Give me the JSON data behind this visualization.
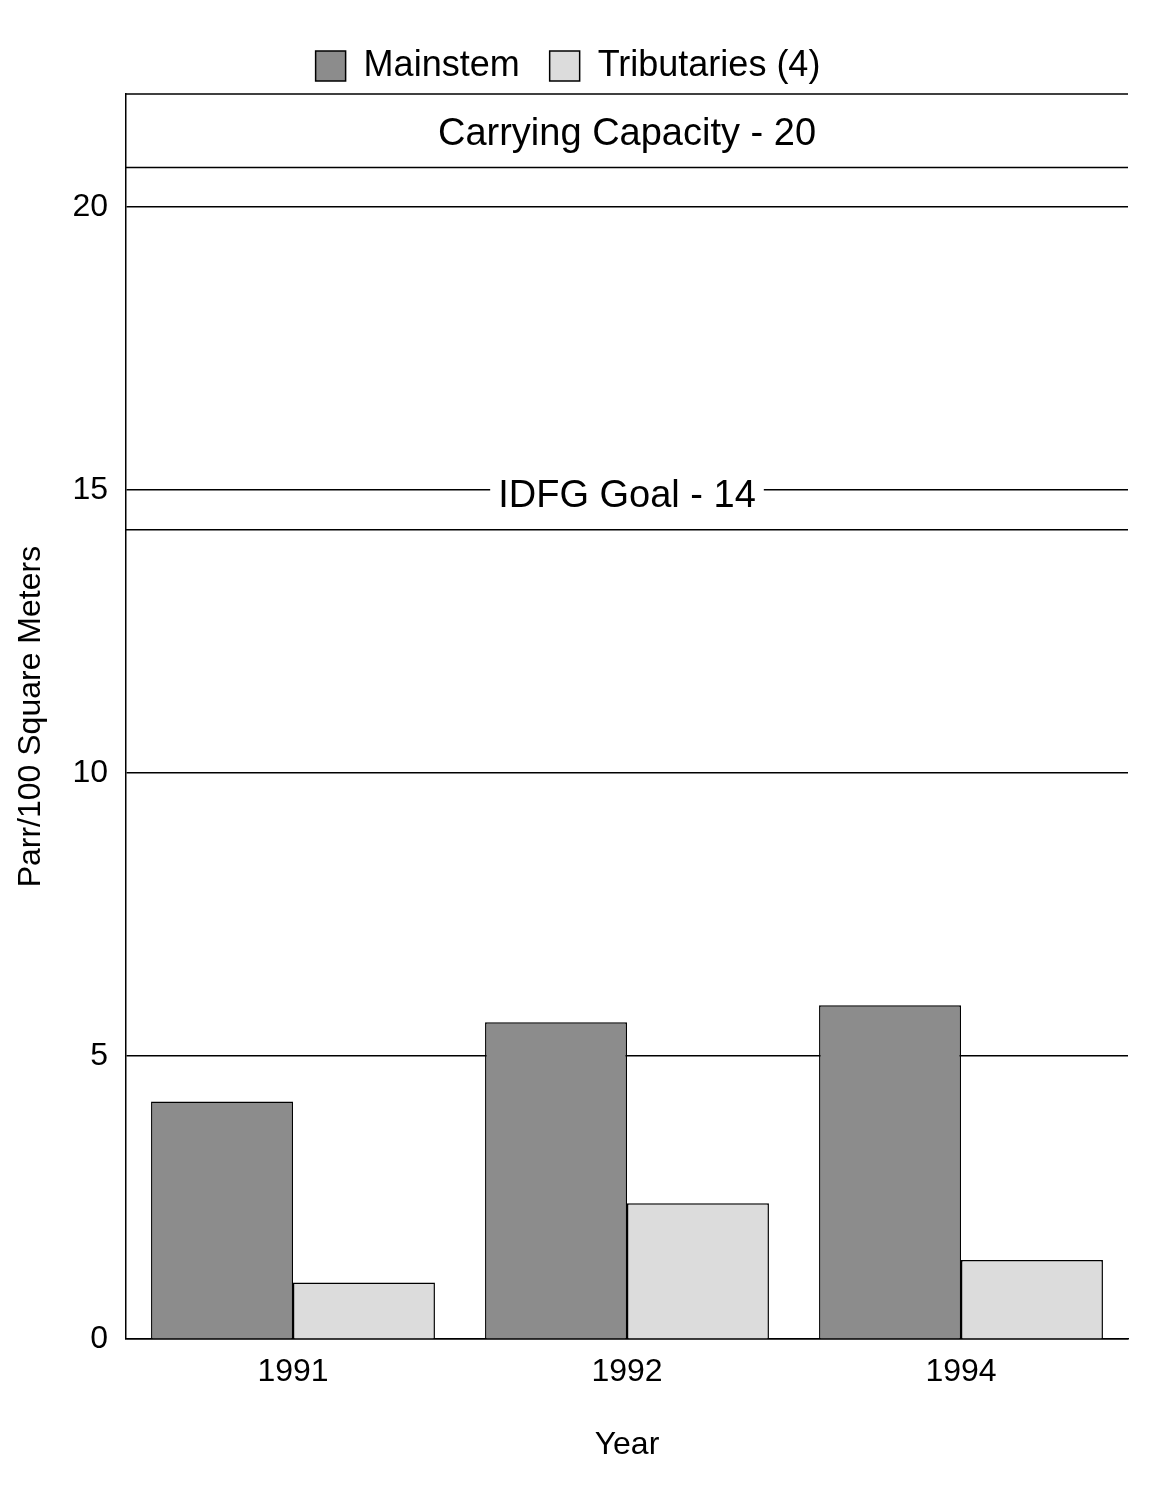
{
  "chart_data": {
    "type": "bar",
    "categories": [
      "1991",
      "1992",
      "1994"
    ],
    "series": [
      {
        "name": "Mainstem",
        "color": "#8c8c8c",
        "values": [
          4.2,
          5.6,
          5.9
        ]
      },
      {
        "name": "Tributaries (4)",
        "color": "#dcdcdc",
        "values": [
          1.0,
          2.4,
          1.4
        ]
      }
    ],
    "xlabel": "Year",
    "ylabel": "Parr/100 Square Meters",
    "ylim": [
      0,
      22
    ],
    "yticks": [
      0,
      5,
      10,
      15,
      20
    ],
    "grid": "y",
    "legend": "top",
    "ref_lines": [
      {
        "axis": "y",
        "value": 20.7,
        "label": "Carrying Capacity - 20",
        "color": "#000000",
        "line_style": "solid"
      },
      {
        "axis": "y",
        "value": 14.3,
        "label": "IDFG Goal - 14",
        "color": "#000000",
        "line_style": "solid"
      }
    ]
  }
}
